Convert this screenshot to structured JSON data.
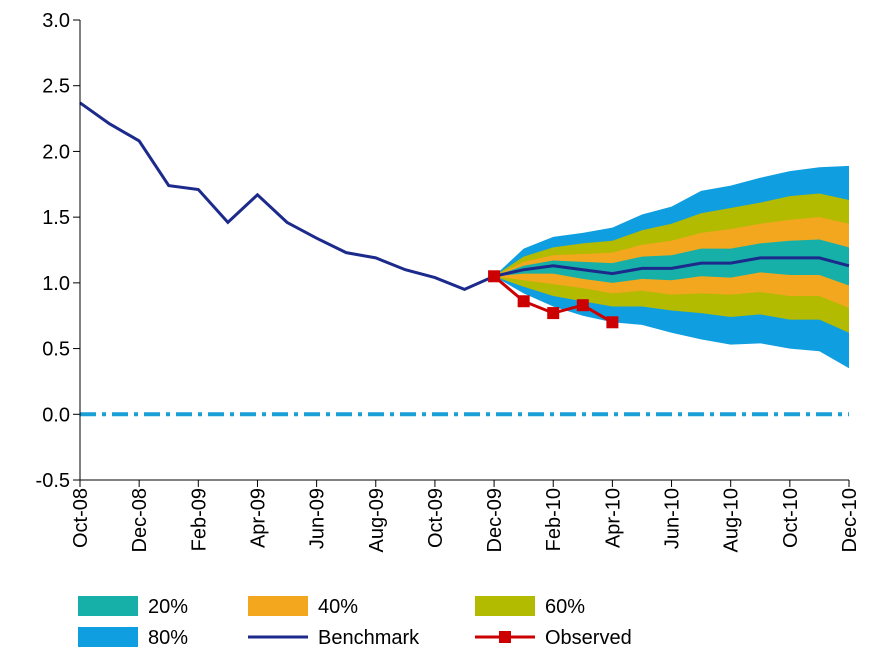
{
  "chart_data": {
    "type": "fan",
    "categories": [
      "Oct-08",
      null,
      "Dec-08",
      null,
      "Feb-09",
      null,
      "Apr-09",
      null,
      "Jun-09",
      null,
      "Aug-09",
      null,
      "Oct-09",
      null,
      "Dec-09",
      null,
      "Feb-10",
      null,
      "Apr-10",
      null,
      "Jun-10",
      null,
      "Aug-10",
      null,
      "Oct-10",
      null,
      "Dec-10"
    ],
    "ylim": [
      -0.5,
      3.0
    ],
    "yticks": [
      {
        "value": -0.5,
        "label": "-0.5"
      },
      {
        "value": 0,
        "label": "0.0"
      },
      {
        "value": 0.5,
        "label": "0.5"
      },
      {
        "value": 1,
        "label": "1.0"
      },
      {
        "value": 1.5,
        "label": "1.5"
      },
      {
        "value": 2,
        "label": "2.0"
      },
      {
        "value": 2.5,
        "label": "2.5"
      },
      {
        "value": 3,
        "label": "3.0"
      }
    ],
    "reference_line": {
      "value": 0,
      "color": "#1a9fd6"
    },
    "series": [
      {
        "name": "20%",
        "type": "band",
        "color": "#17b0a8",
        "high": [
          null,
          null,
          null,
          null,
          null,
          null,
          null,
          null,
          null,
          null,
          null,
          null,
          null,
          null,
          1.05,
          1.13,
          1.17,
          1.16,
          1.15,
          1.2,
          1.21,
          1.26,
          1.26,
          1.3,
          1.32,
          1.33,
          1.27
        ],
        "low": [
          null,
          null,
          null,
          null,
          null,
          null,
          null,
          null,
          null,
          null,
          null,
          null,
          null,
          null,
          1.05,
          1.07,
          1.07,
          1.03,
          1.0,
          1.03,
          1.02,
          1.05,
          1.04,
          1.08,
          1.06,
          1.06,
          0.98
        ]
      },
      {
        "name": "40%",
        "type": "band",
        "color": "#f2a71f",
        "high": [
          null,
          null,
          null,
          null,
          null,
          null,
          null,
          null,
          null,
          null,
          null,
          null,
          null,
          null,
          1.05,
          1.16,
          1.21,
          1.22,
          1.23,
          1.29,
          1.32,
          1.38,
          1.41,
          1.45,
          1.48,
          1.5,
          1.45
        ],
        "low": [
          null,
          null,
          null,
          null,
          null,
          null,
          null,
          null,
          null,
          null,
          null,
          null,
          null,
          null,
          1.05,
          1.02,
          0.99,
          0.96,
          0.92,
          0.94,
          0.91,
          0.92,
          0.91,
          0.93,
          0.9,
          0.9,
          0.81
        ]
      },
      {
        "name": "60%",
        "type": "band",
        "color": "#b3bb00",
        "high": [
          null,
          null,
          null,
          null,
          null,
          null,
          null,
          null,
          null,
          null,
          null,
          null,
          null,
          null,
          1.05,
          1.2,
          1.27,
          1.3,
          1.32,
          1.4,
          1.45,
          1.53,
          1.57,
          1.61,
          1.66,
          1.68,
          1.63
        ],
        "low": [
          null,
          null,
          null,
          null,
          null,
          null,
          null,
          null,
          null,
          null,
          null,
          null,
          null,
          null,
          1.05,
          0.97,
          0.9,
          0.86,
          0.82,
          0.82,
          0.79,
          0.77,
          0.74,
          0.76,
          0.72,
          0.72,
          0.62
        ]
      },
      {
        "name": "80%",
        "type": "band",
        "color": "#0f9ee0",
        "high": [
          null,
          null,
          null,
          null,
          null,
          null,
          null,
          null,
          null,
          null,
          null,
          null,
          null,
          null,
          1.05,
          1.26,
          1.35,
          1.38,
          1.42,
          1.52,
          1.58,
          1.7,
          1.74,
          1.8,
          1.85,
          1.88,
          1.89
        ],
        "low": [
          null,
          null,
          null,
          null,
          null,
          null,
          null,
          null,
          null,
          null,
          null,
          null,
          null,
          null,
          1.05,
          0.92,
          0.82,
          0.75,
          0.7,
          0.68,
          0.62,
          0.57,
          0.53,
          0.54,
          0.5,
          0.48,
          0.35
        ]
      },
      {
        "name": "Benchmark",
        "type": "line",
        "color": "#1c2a8c",
        "values": [
          2.37,
          2.21,
          2.08,
          1.74,
          1.71,
          1.46,
          1.67,
          1.46,
          1.34,
          1.23,
          1.19,
          1.1,
          1.04,
          0.95,
          1.05,
          1.1,
          1.13,
          1.1,
          1.07,
          1.11,
          1.11,
          1.15,
          1.15,
          1.19,
          1.19,
          1.19,
          1.13
        ]
      },
      {
        "name": "Observed",
        "type": "line",
        "color": "#cc0000",
        "marker": "square",
        "values": [
          null,
          null,
          null,
          null,
          null,
          null,
          null,
          null,
          null,
          null,
          null,
          null,
          null,
          null,
          1.05,
          0.86,
          0.77,
          0.83,
          0.7,
          null,
          null,
          null,
          null,
          null,
          null,
          null,
          null
        ]
      }
    ]
  }
}
